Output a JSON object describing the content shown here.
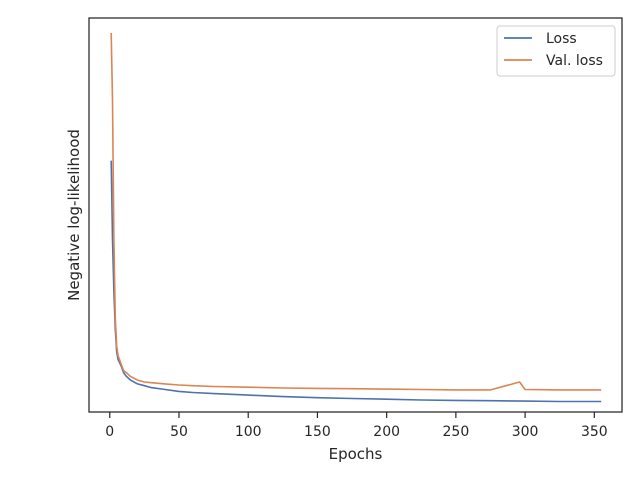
{
  "chart_data": {
    "type": "line",
    "xlabel": "Epochs",
    "ylabel": "Negative log-likelihood",
    "xlim": [
      -15,
      370
    ],
    "ylim": [
      -0.01,
      1.04
    ],
    "x_ticks": [
      0,
      50,
      100,
      150,
      200,
      250,
      300,
      350
    ],
    "y_tick_labels_shown": false,
    "grid": false,
    "legend_position": "top-right",
    "colors": {
      "Loss": "#4c72b0",
      "Val. loss": "#dd8452",
      "axes": "#262626"
    },
    "series": [
      {
        "name": "Loss",
        "x": [
          1,
          2,
          3,
          4,
          5,
          6,
          8,
          10,
          12,
          15,
          20,
          25,
          30,
          40,
          50,
          60,
          75,
          100,
          125,
          150,
          175,
          200,
          225,
          250,
          275,
          300,
          325,
          355
        ],
        "y": [
          0.66,
          0.45,
          0.31,
          0.21,
          0.15,
          0.13,
          0.115,
          0.095,
          0.085,
          0.075,
          0.065,
          0.06,
          0.055,
          0.05,
          0.045,
          0.042,
          0.039,
          0.035,
          0.031,
          0.028,
          0.026,
          0.024,
          0.022,
          0.021,
          0.02,
          0.019,
          0.018,
          0.018
        ]
      },
      {
        "name": "Val. loss",
        "x": [
          1,
          2,
          3,
          4,
          5,
          6,
          8,
          10,
          12,
          15,
          20,
          25,
          30,
          40,
          50,
          60,
          75,
          100,
          125,
          150,
          175,
          200,
          225,
          250,
          275,
          296,
          300,
          325,
          355
        ],
        "y": [
          1.0,
          0.82,
          0.45,
          0.24,
          0.165,
          0.14,
          0.12,
          0.1,
          0.095,
          0.085,
          0.075,
          0.07,
          0.068,
          0.065,
          0.062,
          0.06,
          0.058,
          0.056,
          0.054,
          0.053,
          0.052,
          0.051,
          0.05,
          0.049,
          0.049,
          0.07,
          0.05,
          0.049,
          0.049
        ]
      }
    ]
  }
}
